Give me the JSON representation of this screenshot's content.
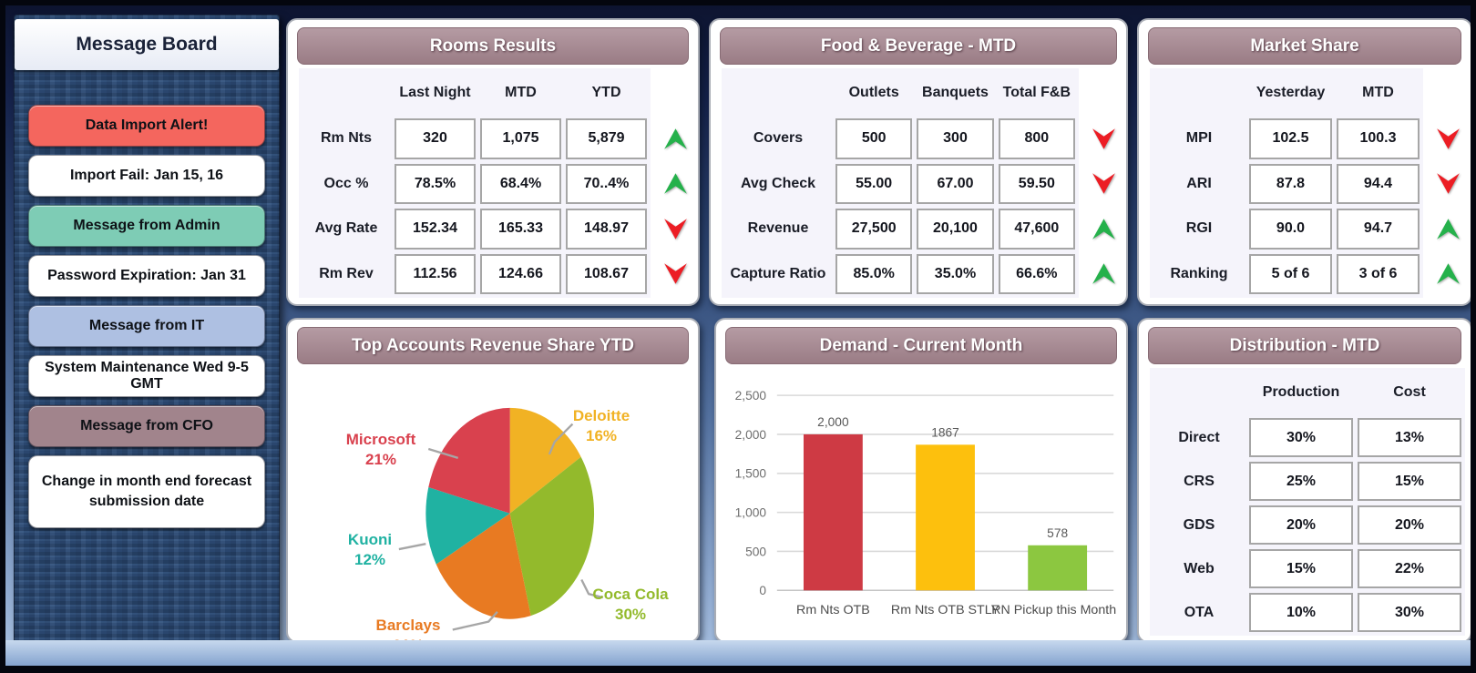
{
  "message_board": {
    "title": "Message Board",
    "items": [
      {
        "label": "Data Import Alert!"
      },
      {
        "label": "Import Fail: Jan 15, 16"
      },
      {
        "label": "Message from Admin"
      },
      {
        "label": "Password Expiration: Jan 31"
      },
      {
        "label": "Message from IT"
      },
      {
        "label": "System Maintenance Wed 9-5 GMT"
      },
      {
        "label": "Message from CFO"
      },
      {
        "label": "Change in month end forecast submission date"
      }
    ]
  },
  "rooms_results": {
    "title": "Rooms Results",
    "columns": [
      "Last Night",
      "MTD",
      "YTD"
    ],
    "rows": [
      {
        "label": "Rm Nts",
        "values": [
          "320",
          "1,075",
          "5,879"
        ],
        "trend": "up"
      },
      {
        "label": "Occ %",
        "values": [
          "78.5%",
          "68.4%",
          "70..4%"
        ],
        "trend": "up"
      },
      {
        "label": "Avg Rate",
        "values": [
          "152.34",
          "165.33",
          "148.97"
        ],
        "trend": "down"
      },
      {
        "label": "Rm Rev",
        "values": [
          "112.56",
          "124.66",
          "108.67"
        ],
        "trend": "down"
      }
    ]
  },
  "food_beverage": {
    "title": "Food & Beverage - MTD",
    "columns": [
      "Outlets",
      "Banquets",
      "Total F&B"
    ],
    "rows": [
      {
        "label": "Covers",
        "values": [
          "500",
          "300",
          "800"
        ],
        "trend": "down"
      },
      {
        "label": "Avg Check",
        "values": [
          "55.00",
          "67.00",
          "59.50"
        ],
        "trend": "down"
      },
      {
        "label": "Revenue",
        "values": [
          "27,500",
          "20,100",
          "47,600"
        ],
        "trend": "up"
      },
      {
        "label": "Capture Ratio",
        "values": [
          "85.0%",
          "35.0%",
          "66.6%"
        ],
        "trend": "up"
      }
    ]
  },
  "market_share": {
    "title": "Market Share",
    "columns": [
      "Yesterday",
      "MTD"
    ],
    "rows": [
      {
        "label": "MPI",
        "values": [
          "102.5",
          "100.3"
        ],
        "trend": "down"
      },
      {
        "label": "ARI",
        "values": [
          "87.8",
          "94.4"
        ],
        "trend": "down"
      },
      {
        "label": "RGI",
        "values": [
          "90.0",
          "94.7"
        ],
        "trend": "up"
      },
      {
        "label": "Ranking",
        "values": [
          "5 of 6",
          "3 of 6"
        ],
        "trend": "up"
      }
    ]
  },
  "distribution": {
    "title": "Distribution - MTD",
    "columns": [
      "Production",
      "Cost"
    ],
    "rows": [
      {
        "label": "Direct",
        "values": [
          "30%",
          "13%"
        ]
      },
      {
        "label": "CRS",
        "values": [
          "25%",
          "15%"
        ]
      },
      {
        "label": "GDS",
        "values": [
          "20%",
          "20%"
        ]
      },
      {
        "label": "Web",
        "values": [
          "15%",
          "22%"
        ]
      },
      {
        "label": "OTA",
        "values": [
          "10%",
          "30%"
        ]
      }
    ]
  },
  "chart_data": [
    {
      "type": "pie",
      "title": "Top Accounts Revenue Share YTD",
      "labels": [
        "Deloitte",
        "Coca Cola",
        "Barclays",
        "Kuoni",
        "Microsoft"
      ],
      "values": [
        16,
        30,
        21,
        12,
        21
      ],
      "colors": [
        "#f1b224",
        "#93ba2c",
        "#e87a22",
        "#20b2a2",
        "#d9414e"
      ],
      "start_angle_deg": 0,
      "direction": "clockwise",
      "legend_position": "callout-labels"
    },
    {
      "type": "bar",
      "title": "Demand - Current Month",
      "categories": [
        "Rm Nts OTB",
        "Rm Nts OTB STLY",
        "RN Pickup this Month"
      ],
      "values": [
        2000,
        1867,
        578
      ],
      "value_labels": [
        "2,000",
        "1867",
        "578"
      ],
      "colors": [
        "#ce3a44",
        "#fdc00d",
        "#8cc740"
      ],
      "ylim": [
        0,
        2500
      ],
      "ytick_labels": [
        "0",
        "500",
        "1,000",
        "1,500",
        "2,000",
        "2,500"
      ],
      "grid": true
    }
  ],
  "status_colors": {
    "up_arrow": "#25b14b",
    "down_arrow": "#ec1d24",
    "panel_header": "#9a7c85",
    "alert_button": "#f4665e",
    "admin_button": "#7eccb5",
    "it_button": "#aec0e2",
    "cfo_button": "#a1848c"
  }
}
